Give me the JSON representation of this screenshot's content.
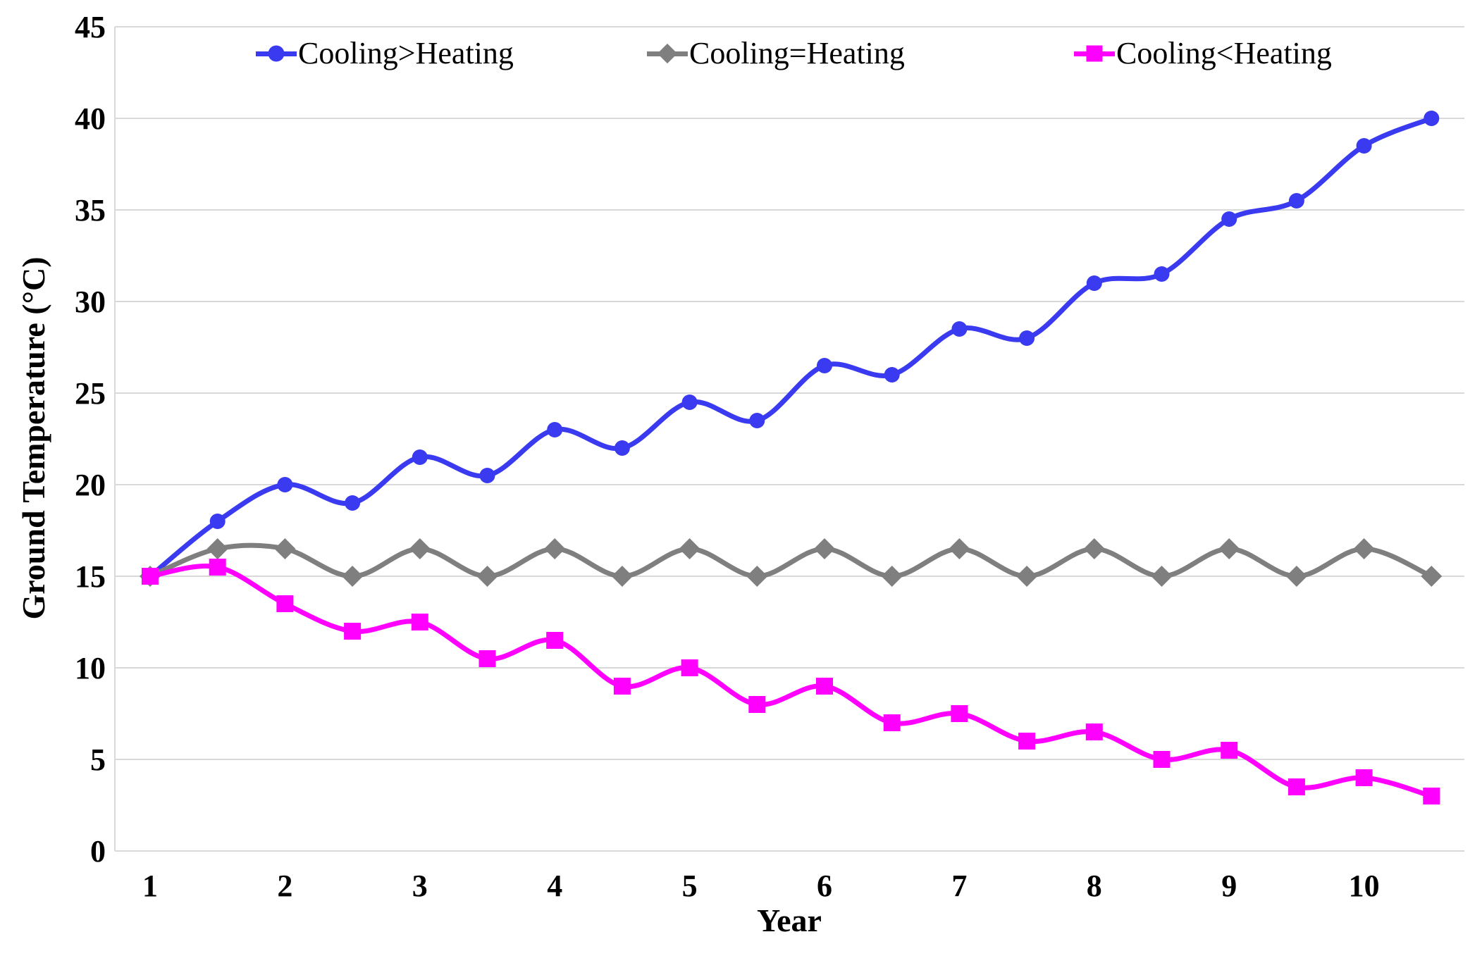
{
  "chart_data": {
    "type": "line",
    "title": "",
    "xlabel": "Year",
    "ylabel": "Ground Temperature (°C)",
    "x": [
      1,
      1.5,
      2,
      2.5,
      3,
      3.5,
      4,
      4.5,
      5,
      5.5,
      6,
      6.5,
      7,
      7.5,
      8,
      8.5,
      9,
      9.5,
      10,
      10.5
    ],
    "x_tick_labels": [
      "1",
      "2",
      "3",
      "4",
      "5",
      "6",
      "7",
      "8",
      "9",
      "10"
    ],
    "y_ticks": [
      0,
      5,
      10,
      15,
      20,
      25,
      30,
      35,
      40,
      45
    ],
    "ylim": [
      0,
      45
    ],
    "xlim": [
      0.75,
      10.75
    ],
    "grid": "horizontal",
    "grid_color": "#D9D9D9",
    "axis_line_color": "#D9D9D9",
    "legend_position": "top",
    "series": [
      {
        "id": "cooling-gt-heating",
        "name": "Cooling>Heating",
        "color": "#3A3AF0",
        "marker": "circle",
        "values": [
          15,
          18,
          20,
          19,
          21.5,
          20.5,
          23,
          22,
          24.5,
          23.5,
          26.5,
          26,
          28.5,
          28,
          31,
          31.5,
          34.5,
          35.5,
          38.5,
          40
        ]
      },
      {
        "id": "cooling-eq-heating",
        "name": "Cooling=Heating",
        "color": "#7F7F7F",
        "marker": "diamond",
        "values": [
          15,
          16.5,
          16.5,
          15,
          16.5,
          15,
          16.5,
          15,
          16.5,
          15,
          16.5,
          15,
          16.5,
          15,
          16.5,
          15,
          16.5,
          15,
          16.5,
          15
        ]
      },
      {
        "id": "cooling-lt-heating",
        "name": "Cooling<Heating",
        "color": "#FF00FF",
        "marker": "square",
        "values": [
          15,
          15.5,
          13.5,
          12,
          12.5,
          10.5,
          11.5,
          9,
          10,
          8,
          9,
          7,
          7.5,
          6,
          6.5,
          5,
          5.5,
          3.5,
          4,
          3
        ]
      }
    ]
  }
}
